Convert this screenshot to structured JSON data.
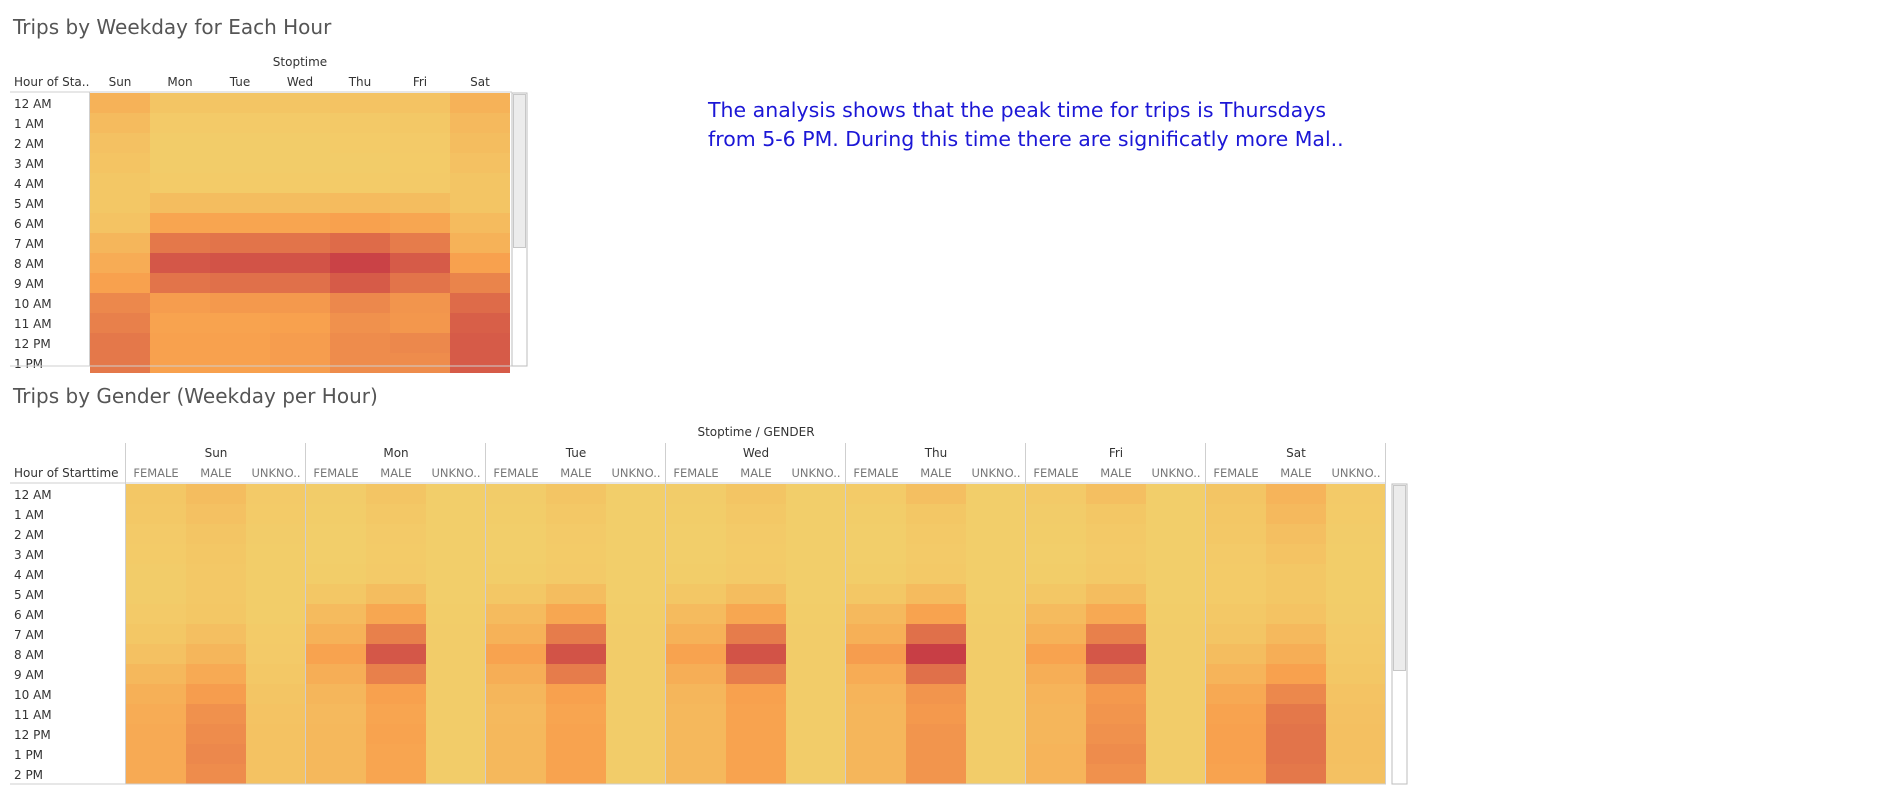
{
  "chart_data": [
    {
      "type": "heatmap",
      "title": "Trips by Weekday for Each Hour",
      "column_header": "Stoptime",
      "row_header": "Hour of Sta..",
      "columns": [
        "Sun",
        "Mon",
        "Tue",
        "Wed",
        "Thu",
        "Fri",
        "Sat"
      ],
      "rows": [
        "12 AM",
        "1 AM",
        "2 AM",
        "3 AM",
        "4 AM",
        "5 AM",
        "6 AM",
        "7 AM",
        "8 AM",
        "9 AM",
        "10 AM",
        "11 AM",
        "12 PM",
        "1 PM"
      ],
      "values": [
        [
          0.32,
          0.12,
          0.12,
          0.12,
          0.14,
          0.14,
          0.32
        ],
        [
          0.22,
          0.06,
          0.06,
          0.06,
          0.07,
          0.08,
          0.24
        ],
        [
          0.16,
          0.04,
          0.04,
          0.04,
          0.05,
          0.06,
          0.2
        ],
        [
          0.13,
          0.04,
          0.04,
          0.04,
          0.04,
          0.05,
          0.16
        ],
        [
          0.1,
          0.05,
          0.05,
          0.05,
          0.05,
          0.06,
          0.12
        ],
        [
          0.1,
          0.2,
          0.2,
          0.2,
          0.22,
          0.2,
          0.12
        ],
        [
          0.14,
          0.46,
          0.46,
          0.46,
          0.5,
          0.45,
          0.22
        ],
        [
          0.28,
          0.7,
          0.72,
          0.72,
          0.76,
          0.68,
          0.32
        ],
        [
          0.38,
          0.86,
          0.88,
          0.88,
          0.96,
          0.84,
          0.5
        ],
        [
          0.5,
          0.72,
          0.74,
          0.74,
          0.84,
          0.72,
          0.64
        ],
        [
          0.62,
          0.52,
          0.54,
          0.54,
          0.62,
          0.56,
          0.76
        ],
        [
          0.66,
          0.48,
          0.48,
          0.5,
          0.58,
          0.55,
          0.82
        ],
        [
          0.7,
          0.5,
          0.5,
          0.52,
          0.6,
          0.62,
          0.84
        ],
        [
          0.7,
          0.5,
          0.5,
          0.52,
          0.6,
          0.6,
          0.84
        ]
      ]
    },
    {
      "type": "heatmap",
      "title": "Trips by Gender (Weekday per Hour)",
      "column_header": "Stoptime / GENDER",
      "row_header": "Hour of Starttime",
      "days": [
        "Sun",
        "Mon",
        "Tue",
        "Wed",
        "Thu",
        "Fri",
        "Sat"
      ],
      "genders": [
        "FEMALE",
        "MALE",
        "UNKNO.."
      ],
      "rows": [
        "12 AM",
        "1 AM",
        "2 AM",
        "3 AM",
        "4 AM",
        "5 AM",
        "6 AM",
        "7 AM",
        "8 AM",
        "9 AM",
        "10 AM",
        "11 AM",
        "12 PM",
        "1 PM",
        "2 PM"
      ],
      "values": [
        [
          0.1,
          0.2,
          0.06,
          0.04,
          0.12,
          0.02,
          0.04,
          0.12,
          0.02,
          0.04,
          0.12,
          0.02,
          0.05,
          0.18,
          0.02,
          0.06,
          0.18,
          0.02,
          0.12,
          0.3,
          0.06
        ],
        [
          0.08,
          0.16,
          0.05,
          0.03,
          0.08,
          0.02,
          0.03,
          0.08,
          0.02,
          0.03,
          0.08,
          0.02,
          0.03,
          0.1,
          0.02,
          0.04,
          0.1,
          0.02,
          0.1,
          0.24,
          0.05
        ],
        [
          0.06,
          0.12,
          0.04,
          0.02,
          0.06,
          0.02,
          0.02,
          0.06,
          0.02,
          0.02,
          0.06,
          0.02,
          0.02,
          0.07,
          0.02,
          0.03,
          0.07,
          0.02,
          0.08,
          0.18,
          0.04
        ],
        [
          0.05,
          0.1,
          0.03,
          0.02,
          0.05,
          0.02,
          0.02,
          0.05,
          0.02,
          0.02,
          0.05,
          0.02,
          0.02,
          0.06,
          0.02,
          0.02,
          0.06,
          0.02,
          0.06,
          0.14,
          0.03
        ],
        [
          0.04,
          0.08,
          0.03,
          0.03,
          0.06,
          0.02,
          0.03,
          0.06,
          0.02,
          0.03,
          0.06,
          0.02,
          0.03,
          0.07,
          0.02,
          0.03,
          0.07,
          0.02,
          0.05,
          0.1,
          0.03
        ],
        [
          0.04,
          0.08,
          0.03,
          0.1,
          0.2,
          0.02,
          0.1,
          0.2,
          0.02,
          0.1,
          0.2,
          0.02,
          0.1,
          0.22,
          0.02,
          0.1,
          0.2,
          0.02,
          0.05,
          0.1,
          0.03
        ],
        [
          0.06,
          0.1,
          0.03,
          0.22,
          0.44,
          0.03,
          0.22,
          0.44,
          0.03,
          0.22,
          0.44,
          0.03,
          0.24,
          0.48,
          0.03,
          0.22,
          0.42,
          0.03,
          0.08,
          0.14,
          0.04
        ],
        [
          0.1,
          0.18,
          0.05,
          0.32,
          0.66,
          0.04,
          0.32,
          0.68,
          0.04,
          0.32,
          0.68,
          0.04,
          0.34,
          0.74,
          0.04,
          0.32,
          0.66,
          0.04,
          0.12,
          0.24,
          0.06
        ],
        [
          0.16,
          0.28,
          0.06,
          0.48,
          0.86,
          0.04,
          0.48,
          0.88,
          0.04,
          0.48,
          0.88,
          0.04,
          0.52,
          0.98,
          0.04,
          0.48,
          0.86,
          0.04,
          0.2,
          0.36,
          0.07
        ],
        [
          0.26,
          0.4,
          0.08,
          0.36,
          0.66,
          0.04,
          0.36,
          0.68,
          0.04,
          0.36,
          0.68,
          0.04,
          0.38,
          0.74,
          0.04,
          0.36,
          0.66,
          0.04,
          0.3,
          0.5,
          0.1
        ],
        [
          0.34,
          0.52,
          0.12,
          0.28,
          0.5,
          0.04,
          0.28,
          0.5,
          0.04,
          0.28,
          0.5,
          0.04,
          0.3,
          0.56,
          0.04,
          0.3,
          0.54,
          0.04,
          0.42,
          0.62,
          0.14
        ],
        [
          0.38,
          0.58,
          0.14,
          0.24,
          0.46,
          0.04,
          0.24,
          0.46,
          0.04,
          0.26,
          0.48,
          0.04,
          0.28,
          0.54,
          0.04,
          0.28,
          0.56,
          0.04,
          0.48,
          0.7,
          0.16
        ],
        [
          0.4,
          0.6,
          0.15,
          0.26,
          0.48,
          0.04,
          0.26,
          0.48,
          0.04,
          0.26,
          0.48,
          0.04,
          0.28,
          0.56,
          0.04,
          0.28,
          0.58,
          0.04,
          0.5,
          0.72,
          0.17
        ],
        [
          0.4,
          0.62,
          0.15,
          0.26,
          0.46,
          0.04,
          0.26,
          0.48,
          0.04,
          0.26,
          0.48,
          0.04,
          0.28,
          0.56,
          0.04,
          0.3,
          0.6,
          0.04,
          0.5,
          0.72,
          0.17
        ],
        [
          0.4,
          0.6,
          0.15,
          0.26,
          0.46,
          0.04,
          0.26,
          0.48,
          0.04,
          0.26,
          0.48,
          0.04,
          0.28,
          0.56,
          0.04,
          0.3,
          0.58,
          0.04,
          0.48,
          0.7,
          0.16
        ]
      ]
    }
  ],
  "annotation": {
    "line1": "The analysis shows that the peak time for trips is Thursdays",
    "line2": "from 5-6 PM. During this time there are significatly more Mal.."
  },
  "colors": {
    "low": "#f2d06b",
    "mid": "#f8a14e",
    "high": "#c63a45",
    "annotation": "#1c17d6"
  }
}
